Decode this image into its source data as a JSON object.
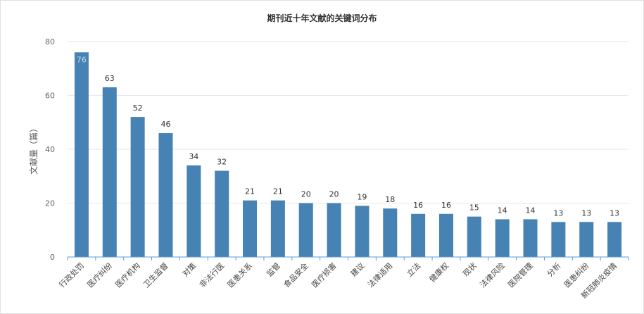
{
  "chart_data": {
    "type": "bar",
    "title": "期刊近十年文献的关键词分布",
    "xlabel": "",
    "ylabel": "文献量（篇）",
    "ylim": [
      0,
      80
    ],
    "yticks": [
      0,
      20,
      40,
      60,
      80
    ],
    "grid": true,
    "categories": [
      "行政处罚",
      "医疗纠纷",
      "医疗机构",
      "卫生监督",
      "对策",
      "非法行医",
      "医患关系",
      "监管",
      "食品安全",
      "医疗损害",
      "建议",
      "法律适用",
      "立法",
      "健康权",
      "现状",
      "法律风险",
      "医院管理",
      "分析",
      "医患纠纷",
      "新冠肺炎疫情"
    ],
    "values": [
      76,
      63,
      52,
      46,
      34,
      32,
      21,
      21,
      20,
      20,
      19,
      18,
      16,
      16,
      15,
      14,
      14,
      13,
      13,
      13
    ],
    "bar_color": "#4682b4",
    "grid_color": "#e6e6e6",
    "axis_color": "#5b9bd5"
  }
}
